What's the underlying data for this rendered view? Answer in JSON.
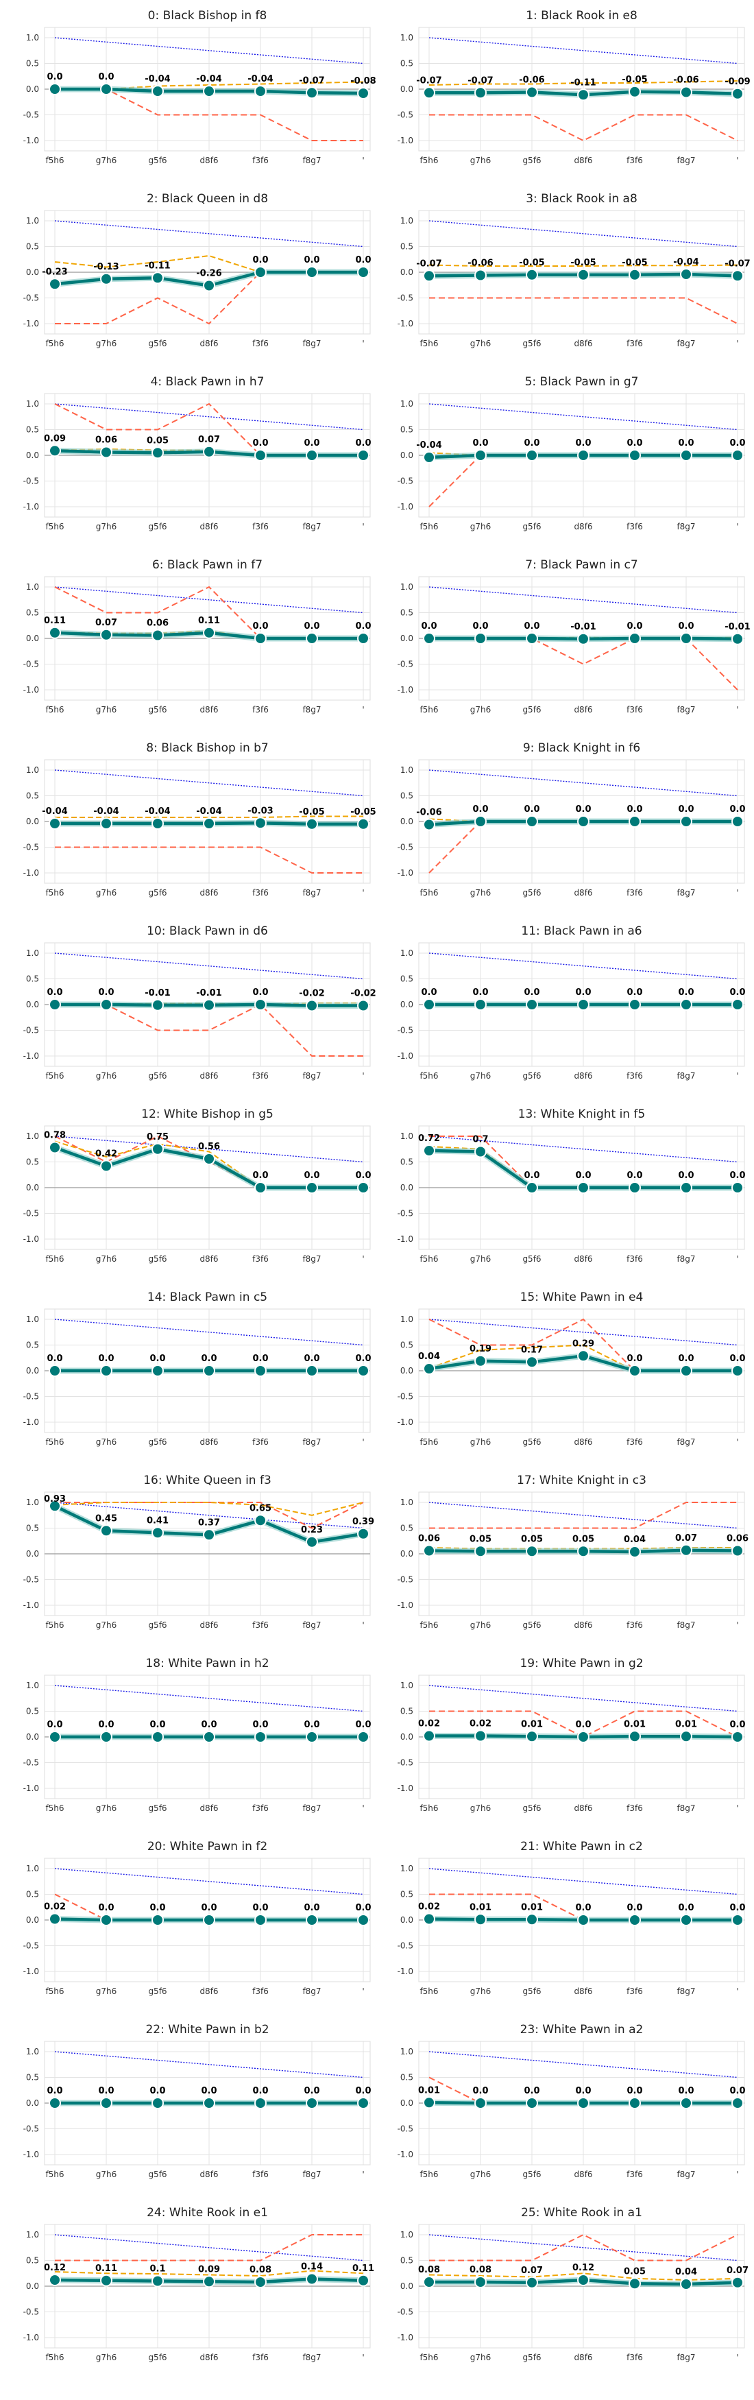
{
  "chart_data": {
    "type": "line",
    "layout": {
      "rows": 13,
      "cols": 2
    },
    "x": [
      "f5h6",
      "g7h6",
      "g5f6",
      "d8f6",
      "f3f6",
      "f8g7",
      "'"
    ],
    "ylim": [
      -1.2,
      1.2
    ],
    "yticks": [
      1.0,
      0.5,
      0.0,
      -0.5,
      -1.0
    ],
    "ytick_labels": [
      "1.0",
      "0.5",
      "0.0",
      "-0.5",
      "-1.0"
    ],
    "grid": true,
    "colors": {
      "main": "#007a78",
      "band": "#9ad3cf",
      "gold": "#f0a500",
      "red": "#ff6347",
      "blue": "#1f1fe8",
      "zero": "#999999"
    },
    "panels": [
      {
        "title": "0: Black Bishop in f8",
        "labels": [
          "0.0",
          "0.0",
          "-0.04",
          "-0.04",
          "-0.04",
          "-0.07",
          "-0.08"
        ],
        "main": [
          0,
          0,
          -0.04,
          -0.04,
          -0.04,
          -0.07,
          -0.08
        ],
        "gold": [
          0,
          0,
          0.06,
          0.08,
          0.1,
          0.12,
          0.14
        ],
        "red": [
          0,
          0,
          -0.5,
          -0.5,
          -0.5,
          -1.0,
          -1.0
        ]
      },
      {
        "title": "1: Black Rook in e8",
        "labels": [
          "-0.07",
          "-0.07",
          "-0.06",
          "-0.11",
          "-0.05",
          "-0.06",
          "-0.09"
        ],
        "main": [
          -0.07,
          -0.07,
          -0.06,
          -0.11,
          -0.05,
          -0.06,
          -0.09
        ],
        "gold": [
          0.08,
          0.1,
          0.1,
          0.12,
          0.12,
          0.14,
          0.16
        ],
        "red": [
          -0.5,
          -0.5,
          -0.5,
          -1.0,
          -0.5,
          -0.5,
          -1.0
        ]
      },
      {
        "title": "2: Black Queen in d8",
        "labels": [
          "-0.23",
          "-0.13",
          "-0.11",
          "-0.26",
          "0.0",
          "0.0",
          "0.0"
        ],
        "main": [
          -0.23,
          -0.13,
          -0.11,
          -0.26,
          0,
          0,
          0
        ],
        "gold": [
          0.2,
          0.1,
          0.2,
          0.32,
          0,
          0,
          0
        ],
        "red": [
          -1.0,
          -1.0,
          -0.5,
          -1.0,
          0,
          0,
          0
        ]
      },
      {
        "title": "3: Black Rook in a8",
        "labels": [
          "-0.07",
          "-0.06",
          "-0.05",
          "-0.05",
          "-0.05",
          "-0.04",
          "-0.07"
        ],
        "main": [
          -0.07,
          -0.06,
          -0.05,
          -0.05,
          -0.05,
          -0.04,
          -0.07
        ],
        "gold": [
          0.14,
          0.12,
          0.12,
          0.12,
          0.13,
          0.13,
          0.14
        ],
        "red": [
          -0.5,
          -0.5,
          -0.5,
          -0.5,
          -0.5,
          -0.5,
          -1.0
        ]
      },
      {
        "title": "4: Black Pawn in h7",
        "labels": [
          "0.09",
          "0.06",
          "0.05",
          "0.07",
          "0.0",
          "0.0",
          "0.0"
        ],
        "main": [
          0.09,
          0.06,
          0.05,
          0.07,
          0,
          0,
          0
        ],
        "gold": [
          0.1,
          0.12,
          0.1,
          0.1,
          0,
          0,
          0
        ],
        "red": [
          1.0,
          0.5,
          0.5,
          1.0,
          0,
          0,
          0
        ]
      },
      {
        "title": "5: Black Pawn in g7",
        "labels": [
          "-0.04",
          "0.0",
          "0.0",
          "0.0",
          "0.0",
          "0.0",
          "0.0"
        ],
        "main": [
          -0.04,
          0,
          0,
          0,
          0,
          0,
          0
        ],
        "gold": [
          0.05,
          0,
          0,
          0,
          0,
          0,
          0
        ],
        "red": [
          -1.0,
          0,
          0,
          0,
          0,
          0,
          0
        ]
      },
      {
        "title": "6: Black Pawn in f7",
        "labels": [
          "0.11",
          "0.07",
          "0.06",
          "0.11",
          "0.0",
          "0.0",
          "0.0"
        ],
        "main": [
          0.11,
          0.07,
          0.06,
          0.11,
          0,
          0,
          0
        ],
        "gold": [
          0.12,
          0.1,
          0.1,
          0.15,
          0,
          0,
          0
        ],
        "red": [
          1.0,
          0.5,
          0.5,
          1.0,
          0,
          0,
          0
        ]
      },
      {
        "title": "7: Black Pawn in c7",
        "labels": [
          "0.0",
          "0.0",
          "0.0",
          "-0.01",
          "0.0",
          "0.0",
          "-0.01"
        ],
        "main": [
          0,
          0,
          0,
          -0.01,
          0,
          0,
          -0.01
        ],
        "gold": [
          0,
          0,
          0,
          0.02,
          0,
          0,
          0.02
        ],
        "red": [
          0,
          0,
          0,
          -0.5,
          0,
          0,
          -1.0
        ]
      },
      {
        "title": "8: Black Bishop in b7",
        "labels": [
          "-0.04",
          "-0.04",
          "-0.04",
          "-0.04",
          "-0.03",
          "-0.05",
          "-0.05"
        ],
        "main": [
          -0.04,
          -0.04,
          -0.04,
          -0.04,
          -0.03,
          -0.05,
          -0.05
        ],
        "gold": [
          0.08,
          0.08,
          0.08,
          0.08,
          0.08,
          0.1,
          0.1
        ],
        "red": [
          -0.5,
          -0.5,
          -0.5,
          -0.5,
          -0.5,
          -1.0,
          -1.0
        ]
      },
      {
        "title": "9: Black Knight in f6",
        "labels": [
          "-0.06",
          "0.0",
          "0.0",
          "0.0",
          "0.0",
          "0.0",
          "0.0"
        ],
        "main": [
          -0.06,
          0,
          0,
          0,
          0,
          0,
          0
        ],
        "gold": [
          0.05,
          0,
          0,
          0,
          0,
          0,
          0
        ],
        "red": [
          -1.0,
          0,
          0,
          0,
          0,
          0,
          0
        ]
      },
      {
        "title": "10: Black Pawn in d6",
        "labels": [
          "0.0",
          "0.0",
          "-0.01",
          "-0.01",
          "0.0",
          "-0.02",
          "-0.02"
        ],
        "main": [
          0,
          0,
          -0.01,
          -0.01,
          0,
          -0.02,
          -0.02
        ],
        "gold": [
          0,
          0,
          0.02,
          0.02,
          0,
          0.03,
          0.03
        ],
        "red": [
          0,
          0,
          -0.5,
          -0.5,
          0,
          -1.0,
          -1.0
        ]
      },
      {
        "title": "11: Black Pawn in a6",
        "labels": [
          "0.0",
          "0.0",
          "0.0",
          "0.0",
          "0.0",
          "0.0",
          "0.0"
        ],
        "main": [
          0,
          0,
          0,
          0,
          0,
          0,
          0
        ],
        "gold": [
          0,
          0,
          0,
          0,
          0,
          0,
          0
        ],
        "red": [
          0,
          0,
          0,
          0,
          0,
          0,
          0
        ]
      },
      {
        "title": "12: White Bishop in g5",
        "labels": [
          "0.78",
          "0.42",
          "0.75",
          "0.56",
          "0.0",
          "0.0",
          "0.0"
        ],
        "main": [
          0.78,
          0.42,
          0.75,
          0.56,
          0,
          0,
          0
        ],
        "gold": [
          0.9,
          0.6,
          0.85,
          0.7,
          0,
          0,
          0
        ],
        "red": [
          1.0,
          0.5,
          1.0,
          0.5,
          0,
          0,
          0
        ]
      },
      {
        "title": "13: White Knight in f5",
        "labels": [
          "0.72",
          "0.7",
          "0.0",
          "0.0",
          "0.0",
          "0.0",
          "0.0"
        ],
        "main": [
          0.72,
          0.7,
          0,
          0,
          0,
          0,
          0
        ],
        "gold": [
          0.8,
          0.75,
          0,
          0,
          0,
          0,
          0
        ],
        "red": [
          1.0,
          1.0,
          0,
          0,
          0,
          0,
          0
        ]
      },
      {
        "title": "14: Black Pawn in c5",
        "labels": [
          "0.0",
          "0.0",
          "0.0",
          "0.0",
          "0.0",
          "0.0",
          "0.0"
        ],
        "main": [
          0,
          0,
          0,
          0,
          0,
          0,
          0
        ],
        "gold": [
          0,
          0,
          0,
          0,
          0,
          0,
          0
        ],
        "red": [
          0,
          0,
          0,
          0,
          0,
          0,
          0
        ]
      },
      {
        "title": "15: White Pawn in e4",
        "labels": [
          "0.04",
          "0.19",
          "0.17",
          "0.29",
          "0.0",
          "0.0",
          "0.0"
        ],
        "main": [
          0.04,
          0.19,
          0.17,
          0.29,
          0,
          0,
          0
        ],
        "gold": [
          0.05,
          0.4,
          0.45,
          0.5,
          0,
          0,
          0
        ],
        "red": [
          1.0,
          0.5,
          0.5,
          1.0,
          0,
          0,
          0
        ]
      },
      {
        "title": "16: White Queen in f3",
        "labels": [
          "0.93",
          "0.45",
          "0.41",
          "0.37",
          "0.65",
          "0.23",
          "0.39"
        ],
        "main": [
          0.93,
          0.45,
          0.41,
          0.37,
          0.65,
          0.23,
          0.39
        ],
        "gold": [
          0.95,
          1.0,
          1.0,
          1.0,
          0.95,
          0.75,
          1.0
        ],
        "red": [
          1.0,
          1.0,
          1.0,
          1.0,
          1.0,
          0.5,
          1.0
        ]
      },
      {
        "title": "17: White Knight in c3",
        "labels": [
          "0.06",
          "0.05",
          "0.05",
          "0.05",
          "0.04",
          "0.07",
          "0.06"
        ],
        "main": [
          0.06,
          0.05,
          0.05,
          0.05,
          0.04,
          0.07,
          0.06
        ],
        "gold": [
          0.12,
          0.1,
          0.1,
          0.1,
          0.1,
          0.12,
          0.12
        ],
        "red": [
          0.5,
          0.5,
          0.5,
          0.5,
          0.5,
          1.0,
          1.0
        ]
      },
      {
        "title": "18: White Pawn in h2",
        "labels": [
          "0.0",
          "0.0",
          "0.0",
          "0.0",
          "0.0",
          "0.0",
          "0.0"
        ],
        "main": [
          0,
          0,
          0,
          0,
          0,
          0,
          0
        ],
        "gold": [
          0,
          0,
          0,
          0,
          0,
          0,
          0
        ],
        "red": [
          0,
          0,
          0,
          0,
          0,
          0,
          0
        ]
      },
      {
        "title": "19: White Pawn in g2",
        "labels": [
          "0.02",
          "0.02",
          "0.01",
          "0.0",
          "0.01",
          "0.01",
          "0.0"
        ],
        "main": [
          0.02,
          0.02,
          0.01,
          0,
          0.01,
          0.01,
          0
        ],
        "gold": [
          0.03,
          0.03,
          0.02,
          0,
          0.02,
          0.02,
          0
        ],
        "red": [
          0.5,
          0.5,
          0.5,
          0,
          0.5,
          0.5,
          0
        ]
      },
      {
        "title": "20: White Pawn in f2",
        "labels": [
          "0.02",
          "0.0",
          "0.0",
          "0.0",
          "0.0",
          "0.0",
          "0.0"
        ],
        "main": [
          0.02,
          0,
          0,
          0,
          0,
          0,
          0
        ],
        "gold": [
          0.03,
          0,
          0,
          0,
          0,
          0,
          0
        ],
        "red": [
          0.5,
          0,
          0,
          0,
          0,
          0,
          0
        ]
      },
      {
        "title": "21: White Pawn in c2",
        "labels": [
          "0.02",
          "0.01",
          "0.01",
          "0.0",
          "0.0",
          "0.0",
          "0.0"
        ],
        "main": [
          0.02,
          0.01,
          0.01,
          0,
          0,
          0,
          0
        ],
        "gold": [
          0.03,
          0.02,
          0.02,
          0,
          0,
          0,
          0
        ],
        "red": [
          0.5,
          0.5,
          0.5,
          0,
          0,
          0,
          0
        ]
      },
      {
        "title": "22: White Pawn in b2",
        "labels": [
          "0.0",
          "0.0",
          "0.0",
          "0.0",
          "0.0",
          "0.0",
          "0.0"
        ],
        "main": [
          0,
          0,
          0,
          0,
          0,
          0,
          0
        ],
        "gold": [
          0,
          0,
          0,
          0,
          0,
          0,
          0
        ],
        "red": [
          0,
          0,
          0,
          0,
          0,
          0,
          0
        ]
      },
      {
        "title": "23: White Pawn in a2",
        "labels": [
          "0.01",
          "0.0",
          "0.0",
          "0.0",
          "0.0",
          "0.0",
          "0.0"
        ],
        "main": [
          0.01,
          0,
          0,
          0,
          0,
          0,
          0
        ],
        "gold": [
          0.02,
          0,
          0,
          0,
          0,
          0,
          0
        ],
        "red": [
          0.5,
          0,
          0,
          0,
          0,
          0,
          0
        ]
      },
      {
        "title": "24: White Rook in e1",
        "labels": [
          "0.12",
          "0.11",
          "0.1",
          "0.09",
          "0.08",
          "0.14",
          "0.11"
        ],
        "main": [
          0.12,
          0.11,
          0.1,
          0.09,
          0.08,
          0.14,
          0.11
        ],
        "gold": [
          0.28,
          0.25,
          0.24,
          0.22,
          0.2,
          0.3,
          0.25
        ],
        "red": [
          0.5,
          0.5,
          0.5,
          0.5,
          0.5,
          1.0,
          1.0
        ]
      },
      {
        "title": "25: White Rook in a1",
        "labels": [
          "0.08",
          "0.08",
          "0.07",
          "0.12",
          "0.05",
          "0.04",
          "0.07"
        ],
        "main": [
          0.08,
          0.08,
          0.07,
          0.12,
          0.05,
          0.04,
          0.07
        ],
        "gold": [
          0.22,
          0.2,
          0.18,
          0.25,
          0.15,
          0.12,
          0.15
        ],
        "red": [
          0.5,
          0.5,
          0.5,
          1.0,
          0.5,
          0.5,
          1.0
        ]
      }
    ]
  }
}
